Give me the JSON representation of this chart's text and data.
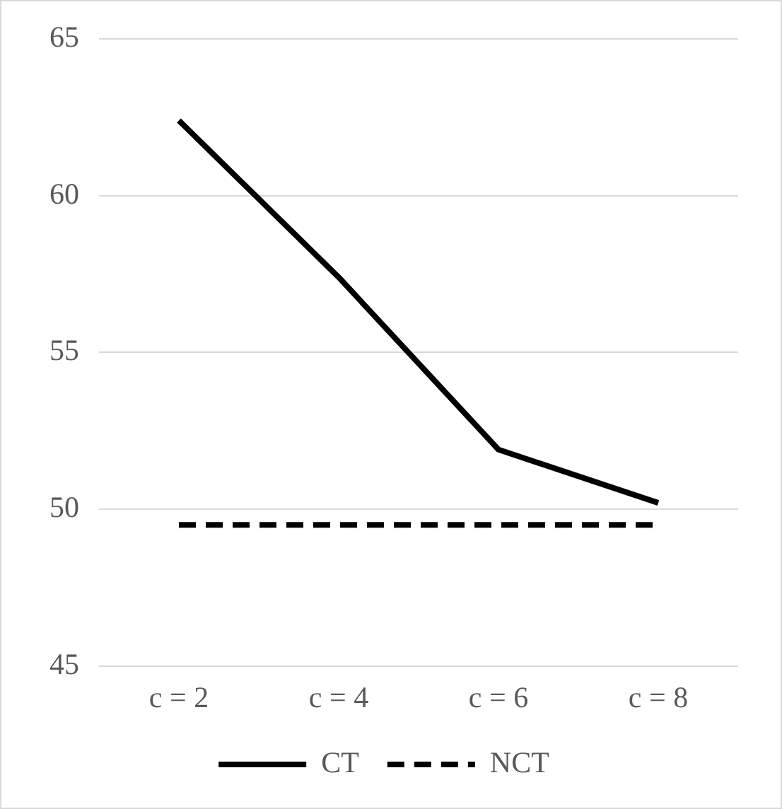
{
  "chart_data": {
    "type": "line",
    "categories": [
      "c = 2",
      "c = 4",
      "c = 6",
      "c = 8"
    ],
    "series": [
      {
        "name": "CT",
        "color": "#000000",
        "values": [
          62.4,
          57.4,
          51.9,
          50.2
        ],
        "line_style": "solid"
      },
      {
        "name": "NCT",
        "color": "#000000",
        "values": [
          49.5,
          49.5,
          49.5,
          49.5
        ],
        "line_style": "dashed"
      }
    ],
    "ylim": [
      45,
      65
    ],
    "yticks": [
      45,
      50,
      55,
      60,
      65
    ],
    "grid": "y",
    "legend": "bottom",
    "marker": "none"
  }
}
